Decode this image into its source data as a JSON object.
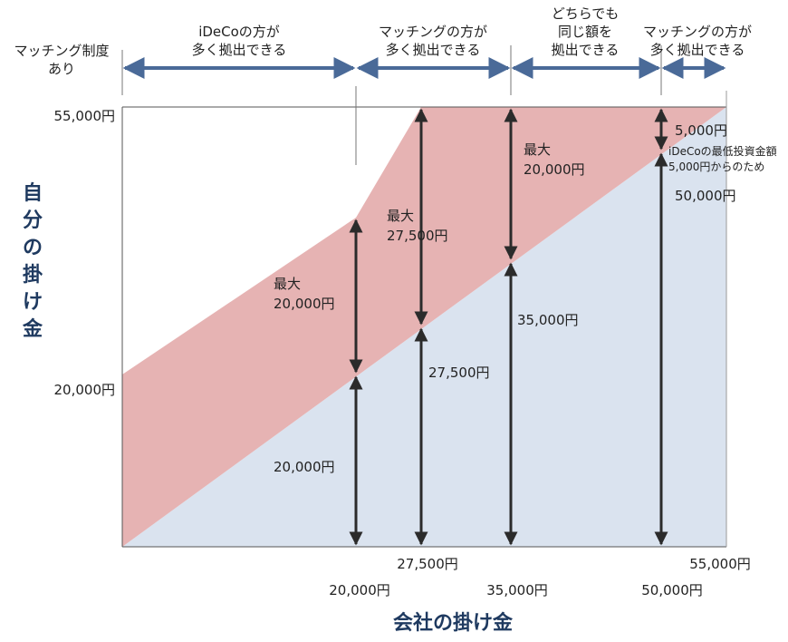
{
  "chart_data": {
    "type": "area",
    "xlabel": "会社の掛け金",
    "ylabel": "自分の掛け金",
    "xlim": [
      10000,
      55000
    ],
    "ylim": [
      0,
      55000
    ],
    "y_ticks": [
      "55,000円",
      "20,000円"
    ],
    "x_ticks": [
      "20,000円",
      "27,500円",
      "35,000円",
      "50,000円",
      "55,000円"
    ],
    "boundaries": {
      "company": {
        "x": [
          10000,
          55000
        ],
        "y": [
          0,
          55000
        ]
      },
      "total_cap": {
        "x": [
          10000,
          20000,
          27500,
          55000
        ],
        "y": [
          20000,
          40000,
          55000,
          55000
        ]
      }
    },
    "header_top_label": "マッチング制度\nあり",
    "regions": [
      {
        "text": "iDeCoの方が\n多く拠出できる"
      },
      {
        "text": "マッチングの方が\n多く拠出できる"
      },
      {
        "text": "どちらでも\n同じ額を\n拠出できる"
      },
      {
        "text": "マッチングの方が\n多く拠出できる"
      }
    ],
    "annotations": {
      "a20k_top": "最大\n20,000円",
      "a20k_bot": "20,000円",
      "a27k_top": "最大\n27,500円",
      "a27k_bot": "27,500円",
      "a35k_top": "最大\n20,000円",
      "a35k_bot": "35,000円",
      "a50k_top": "5,000円",
      "a50k_note": "iDeCoの最低投資金額\n5,000円からのため",
      "a50k_bot": "50,000円"
    },
    "colors": {
      "upper_fill": "#e6b3b3",
      "lower_fill": "#dae3ef",
      "arrow_blue": "#4a6a98",
      "arrow_black": "#2b2b2b",
      "title_navy": "#1f3a60"
    }
  }
}
